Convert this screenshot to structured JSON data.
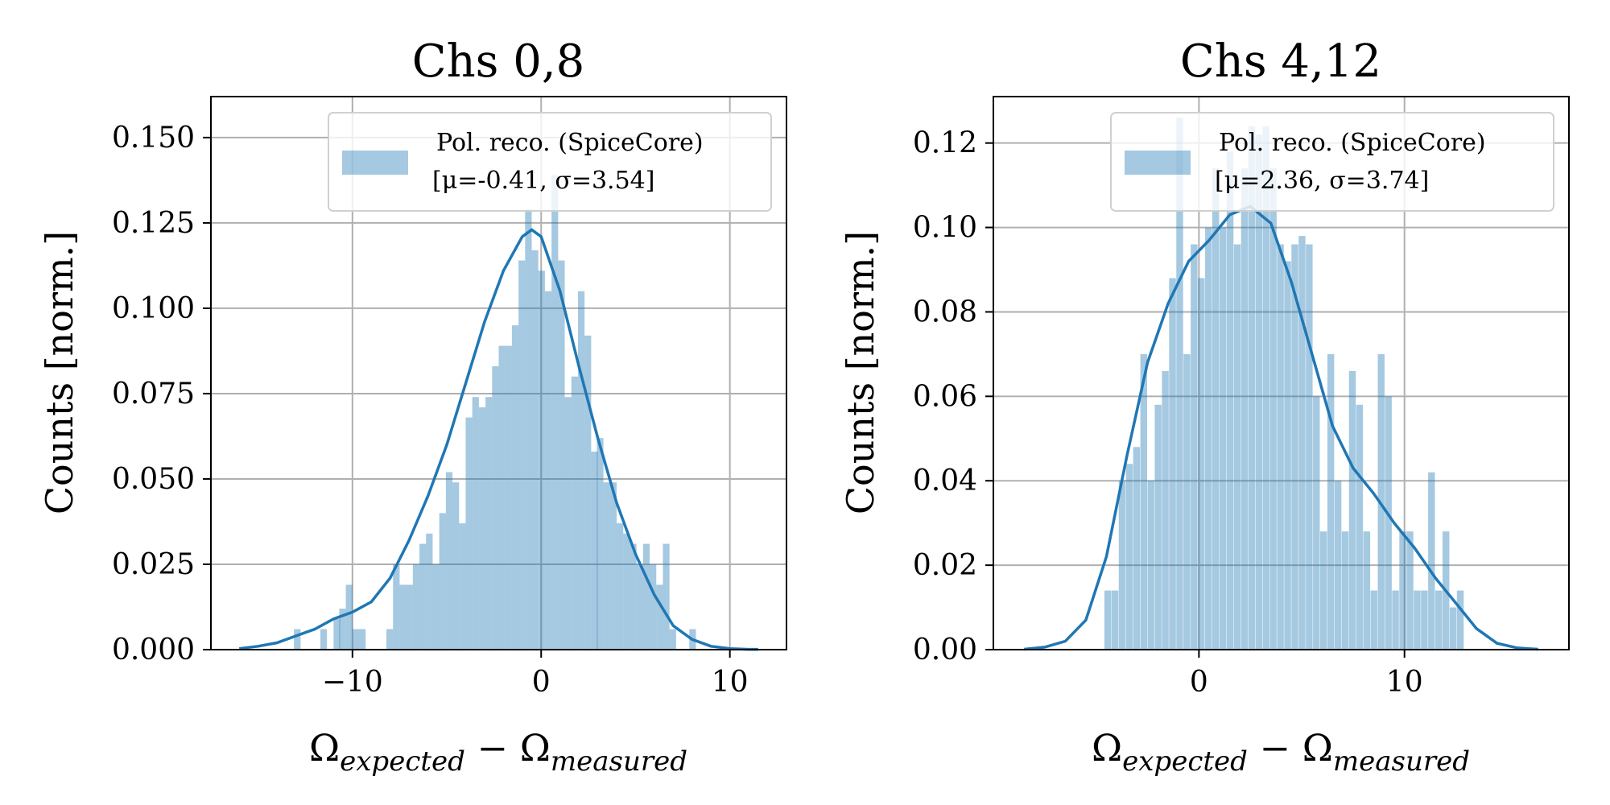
{
  "chart_data": [
    {
      "type": "bar",
      "title": "Chs 0,8",
      "xlabel": "Ω_expected − Ω_measured",
      "xlabel_parts": {
        "omega": "Ω",
        "sub1": "expected",
        "minus": " − ",
        "sub2": "measured"
      },
      "ylabel": "Counts [norm.]",
      "xlim": [
        -17.5,
        13
      ],
      "ylim": [
        0,
        0.162
      ],
      "xticks": [
        -10,
        0,
        10
      ],
      "xtick_labels": [
        "−10",
        "0",
        "10"
      ],
      "yticks": [
        0,
        0.025,
        0.05,
        0.075,
        0.1,
        0.125,
        0.15
      ],
      "ytick_labels": [
        "0.000",
        "0.025",
        "0.050",
        "0.075",
        "0.100",
        "0.125",
        "0.150"
      ],
      "grid": true,
      "legend": {
        "placement": "upper right",
        "line1": "Pol. reco. (SpiceCore)",
        "line2": "[μ=-0.41, σ=3.54]"
      },
      "series": [
        {
          "name": "Pol. reco. (SpiceCore)",
          "kind": "histogram",
          "bin_width": 0.35,
          "bins": [
            [
              -13.1,
              0.006
            ],
            [
              -11.7,
              0.006
            ],
            [
              -11.0,
              0.009
            ],
            [
              -10.7,
              0.012
            ],
            [
              -10.35,
              0.019
            ],
            [
              -10.0,
              0.006
            ],
            [
              -9.65,
              0.006
            ],
            [
              -8.2,
              0.006
            ],
            [
              -7.85,
              0.025
            ],
            [
              -7.5,
              0.019
            ],
            [
              -7.15,
              0.019
            ],
            [
              -6.8,
              0.025
            ],
            [
              -6.45,
              0.031
            ],
            [
              -6.1,
              0.034
            ],
            [
              -5.75,
              0.025
            ],
            [
              -5.4,
              0.04
            ],
            [
              -5.05,
              0.052
            ],
            [
              -4.7,
              0.049
            ],
            [
              -4.35,
              0.037
            ],
            [
              -4.0,
              0.068
            ],
            [
              -3.65,
              0.074
            ],
            [
              -3.3,
              0.071
            ],
            [
              -2.95,
              0.074
            ],
            [
              -2.6,
              0.083
            ],
            [
              -2.25,
              0.089
            ],
            [
              -1.9,
              0.089
            ],
            [
              -1.55,
              0.095
            ],
            [
              -1.2,
              0.114
            ],
            [
              -0.85,
              0.129
            ],
            [
              -0.5,
              0.117
            ],
            [
              -0.15,
              0.111
            ],
            [
              0.2,
              0.105
            ],
            [
              0.55,
              0.139
            ],
            [
              0.9,
              0.114
            ],
            [
              1.25,
              0.074
            ],
            [
              1.6,
              0.08
            ],
            [
              1.95,
              0.105
            ],
            [
              2.3,
              0.092
            ],
            [
              2.65,
              0.058
            ],
            [
              2.95,
              0.062
            ],
            [
              3.3,
              0.049
            ],
            [
              3.65,
              0.049
            ],
            [
              4.0,
              0.037
            ],
            [
              4.35,
              0.034
            ],
            [
              4.7,
              0.031
            ],
            [
              5.05,
              0.025
            ],
            [
              5.4,
              0.031
            ],
            [
              5.75,
              0.025
            ],
            [
              6.1,
              0.019
            ],
            [
              6.45,
              0.031
            ],
            [
              6.8,
              0.006
            ],
            [
              7.85,
              0.006
            ]
          ]
        },
        {
          "name": "kde",
          "kind": "line",
          "x": [
            -16,
            -15,
            -14,
            -13,
            -12,
            -11,
            -10,
            -9,
            -8,
            -7,
            -6,
            -5,
            -4,
            -3,
            -2,
            -1,
            -0.5,
            0,
            1,
            2,
            3,
            4,
            5,
            6,
            7,
            8,
            9,
            10,
            11,
            11.5
          ],
          "y": [
            0.0003,
            0.001,
            0.002,
            0.004,
            0.006,
            0.009,
            0.011,
            0.014,
            0.021,
            0.032,
            0.045,
            0.06,
            0.078,
            0.096,
            0.111,
            0.121,
            0.123,
            0.121,
            0.105,
            0.083,
            0.062,
            0.043,
            0.028,
            0.016,
            0.007,
            0.003,
            0.001,
            0.0003,
            0.0001,
            0.0001
          ]
        }
      ]
    },
    {
      "type": "bar",
      "title": "Chs 4,12",
      "xlabel": "Ω_expected − Ω_measured",
      "xlabel_parts": {
        "omega": "Ω",
        "sub1": "expected",
        "minus": " − ",
        "sub2": "measured"
      },
      "ylabel": "Counts [norm.]",
      "xlim": [
        -10,
        18
      ],
      "ylim": [
        0,
        0.131
      ],
      "xticks": [
        0,
        10
      ],
      "xtick_labels": [
        "0",
        "10"
      ],
      "yticks": [
        0,
        0.02,
        0.04,
        0.06,
        0.08,
        0.1,
        0.12
      ],
      "ytick_labels": [
        "0.00",
        "0.02",
        "0.04",
        "0.06",
        "0.08",
        "0.10",
        "0.12"
      ],
      "grid": true,
      "legend": {
        "placement": "upper right",
        "line1": "Pol. reco. (SpiceCore)",
        "line2": "[μ=2.36, σ=3.74]"
      },
      "series": [
        {
          "name": "Pol. reco. (SpiceCore)",
          "kind": "histogram",
          "bin_width": 0.33,
          "bins": [
            [
              -4.6,
              0.014
            ],
            [
              -4.25,
              0.014
            ],
            [
              -3.9,
              0.04
            ],
            [
              -3.55,
              0.044
            ],
            [
              -3.2,
              0.048
            ],
            [
              -2.85,
              0.07
            ],
            [
              -2.5,
              0.04
            ],
            [
              -2.15,
              0.058
            ],
            [
              -1.8,
              0.066
            ],
            [
              -1.45,
              0.088
            ],
            [
              -1.1,
              0.126
            ],
            [
              -0.75,
              0.07
            ],
            [
              -0.4,
              0.096
            ],
            [
              -0.05,
              0.088
            ],
            [
              0.3,
              0.1
            ],
            [
              0.65,
              0.114
            ],
            [
              1.0,
              0.1
            ],
            [
              1.35,
              0.118
            ],
            [
              1.7,
              0.096
            ],
            [
              2.05,
              0.114
            ],
            [
              2.4,
              0.124
            ],
            [
              2.75,
              0.122
            ],
            [
              3.1,
              0.124
            ],
            [
              3.45,
              0.114
            ],
            [
              3.8,
              0.096
            ],
            [
              4.15,
              0.092
            ],
            [
              4.5,
              0.096
            ],
            [
              4.85,
              0.098
            ],
            [
              5.2,
              0.096
            ],
            [
              5.55,
              0.06
            ],
            [
              5.9,
              0.028
            ],
            [
              6.25,
              0.07
            ],
            [
              6.6,
              0.04
            ],
            [
              6.95,
              0.028
            ],
            [
              7.3,
              0.066
            ],
            [
              7.65,
              0.058
            ],
            [
              8.0,
              0.028
            ],
            [
              8.35,
              0.014
            ],
            [
              8.7,
              0.07
            ],
            [
              9.05,
              0.06
            ],
            [
              9.4,
              0.014
            ],
            [
              9.75,
              0.028
            ],
            [
              10.1,
              0.028
            ],
            [
              10.45,
              0.014
            ],
            [
              10.8,
              0.014
            ],
            [
              11.15,
              0.042
            ],
            [
              11.5,
              0.014
            ],
            [
              11.85,
              0.028
            ],
            [
              12.2,
              0.01
            ],
            [
              12.55,
              0.014
            ]
          ]
        },
        {
          "name": "kde",
          "kind": "line",
          "x": [
            -8.5,
            -7.5,
            -6.5,
            -5.5,
            -4.5,
            -3.5,
            -2.5,
            -1.5,
            -0.5,
            0.5,
            1.5,
            2.5,
            3.5,
            4.5,
            5.5,
            6.5,
            7.5,
            8.5,
            9.5,
            10.5,
            11.5,
            12.5,
            13.5,
            14.5,
            15.5,
            16.5
          ],
          "y": [
            0.0001,
            0.0006,
            0.002,
            0.007,
            0.022,
            0.046,
            0.068,
            0.082,
            0.092,
            0.097,
            0.103,
            0.105,
            0.101,
            0.087,
            0.07,
            0.053,
            0.043,
            0.037,
            0.03,
            0.024,
            0.017,
            0.011,
            0.005,
            0.0015,
            0.0004,
            0.0001
          ]
        }
      ]
    }
  ]
}
